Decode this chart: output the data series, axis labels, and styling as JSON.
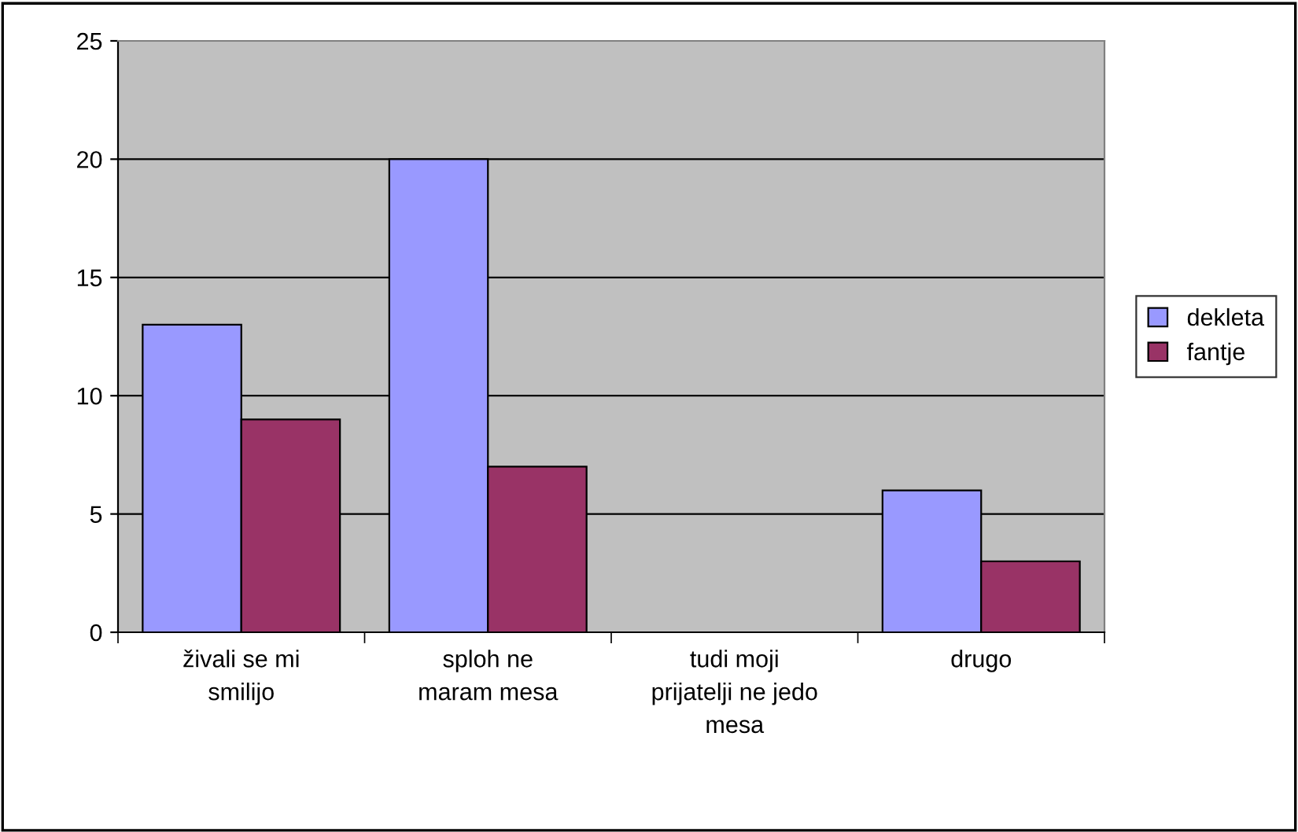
{
  "chart_data": {
    "type": "bar",
    "categories": [
      "živali se mi\nsmilijo",
      "sploh ne\nmaram mesa",
      "tudi moji\nprijatelji ne jedo\nmesa",
      "drugo"
    ],
    "series": [
      {
        "name": "dekleta",
        "color": "#9999ff",
        "values": [
          13,
          20,
          null,
          6
        ]
      },
      {
        "name": "fantje",
        "color": "#993366",
        "values": [
          9,
          7,
          null,
          3
        ]
      }
    ],
    "ylim": [
      0,
      25
    ],
    "yticks": [
      0,
      5,
      10,
      15,
      20,
      25
    ],
    "grid": "y",
    "legend": "right"
  }
}
